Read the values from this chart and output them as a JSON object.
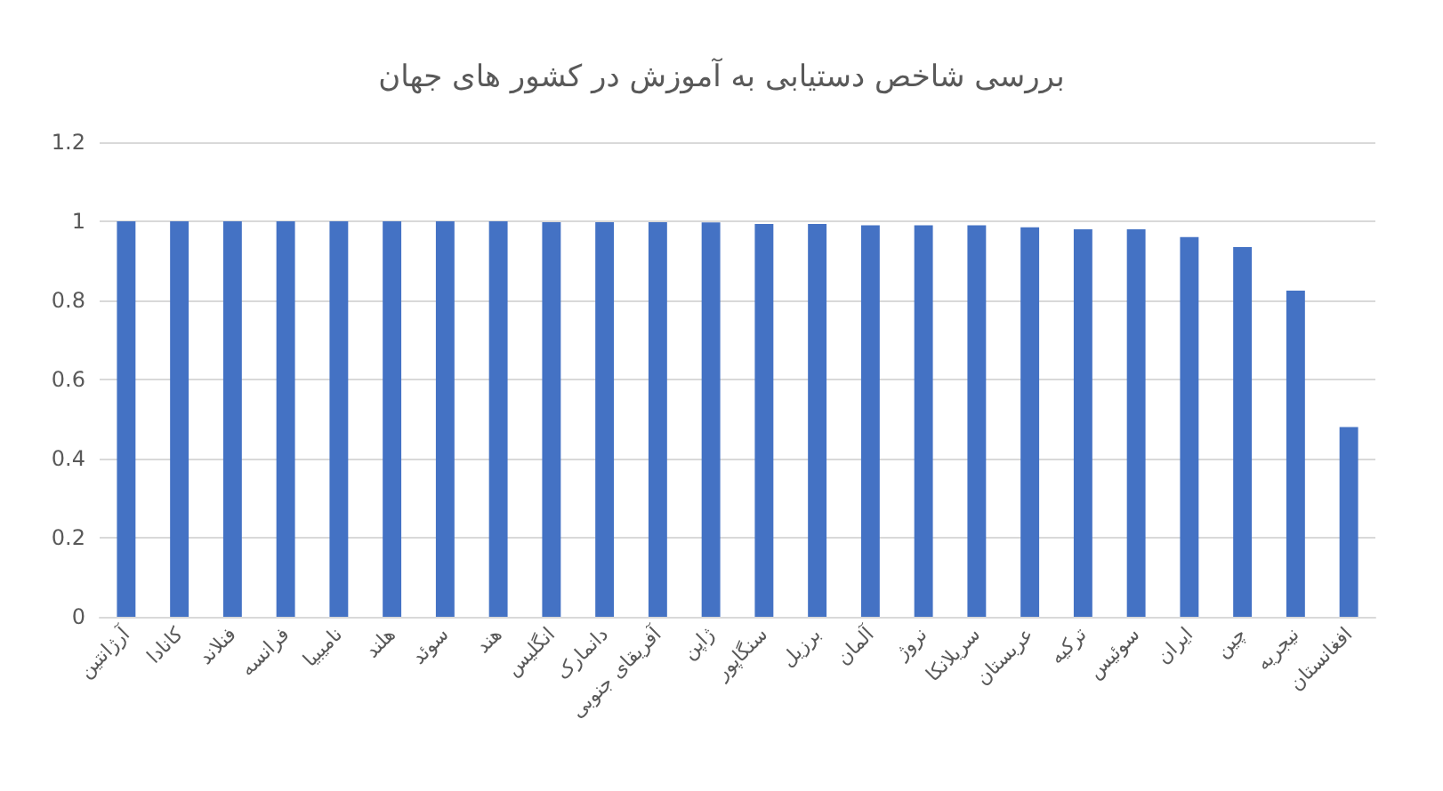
{
  "chart_data": {
    "type": "bar",
    "title": "بررسی شاخص دستیابی به آموزش در کشور های جهان",
    "categories": [
      "آرژانتین",
      "کانادا",
      "فنلاند",
      "فرانسه",
      "نامیبیا",
      "هلند",
      "سوئد",
      "هند",
      "انگلیس",
      "دانمارک",
      "آفریقای جنوبی",
      "ژاپن",
      "سنگاپور",
      "برزیل",
      "آلمان",
      "نروژ",
      "سریلانکا",
      "عربستان",
      "ترکیه",
      "سوئیس",
      "ایران",
      "چین",
      "نیجریه",
      "افغانستان"
    ],
    "values": [
      1,
      1,
      1,
      1,
      1,
      1,
      1,
      1,
      0.998,
      0.998,
      0.998,
      0.997,
      0.993,
      0.993,
      0.99,
      0.99,
      0.99,
      0.985,
      0.98,
      0.98,
      0.96,
      0.935,
      0.825,
      0.48
    ],
    "color": "#4472c4",
    "ylim": [
      0,
      1.2
    ],
    "yticks": [
      0,
      0.2,
      0.4,
      0.6,
      0.8,
      1,
      1.2
    ],
    "grid": "y"
  }
}
